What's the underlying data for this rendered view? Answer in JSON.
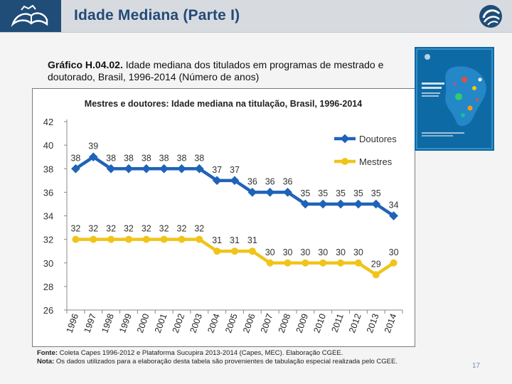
{
  "header": {
    "title": "Idade Mediana (Parte I)",
    "colors": {
      "bar": "#d7dbe0",
      "logo_bg": "#1f4d78",
      "title": "#234a78"
    }
  },
  "caption": {
    "label": "Gráfico H.04.02.",
    "text": "Idade mediana dos titulados em programas de mestrado e doutorado, Brasil, 1996-2014 (Número de anos)"
  },
  "chart_data": {
    "type": "line",
    "title": "Mestres e doutores: Idade mediana na titulação, Brasil, 1996-2014",
    "xlabel": "",
    "ylabel": "",
    "ylim": [
      26,
      42
    ],
    "yticks": [
      26,
      28,
      30,
      32,
      34,
      36,
      38,
      40,
      42
    ],
    "grid": false,
    "legend": "right",
    "categories": [
      "1996",
      "1997",
      "1998",
      "1999",
      "2000",
      "2001",
      "2002",
      "2003",
      "2004",
      "2005",
      "2006",
      "2007",
      "2008",
      "2009",
      "2010",
      "2011",
      "2012",
      "2013",
      "2014"
    ],
    "series": [
      {
        "name": "Doutores",
        "color": "#1f63b8",
        "values": [
          38,
          39,
          38,
          38,
          38,
          38,
          38,
          38,
          37,
          37,
          36,
          36,
          36,
          35,
          35,
          35,
          35,
          35,
          34
        ]
      },
      {
        "name": "Mestres",
        "color": "#f0c419",
        "values": [
          32,
          32,
          32,
          32,
          32,
          32,
          32,
          32,
          31,
          31,
          31,
          30,
          30,
          30,
          30,
          30,
          30,
          29,
          30
        ]
      }
    ]
  },
  "notes": {
    "fonte_label": "Fonte:",
    "fonte_text": "Coleta Capes 1996-2012 e Plataforma Sucupira 2013-2014 (Capes, MEC). Elaboração CGEE.",
    "nota_label": "Nota:",
    "nota_text": "Os dados utilizados para a elaboração desta tabela são provenientes de tabulação especial realizada pelo CGEE."
  },
  "page_number": "17"
}
